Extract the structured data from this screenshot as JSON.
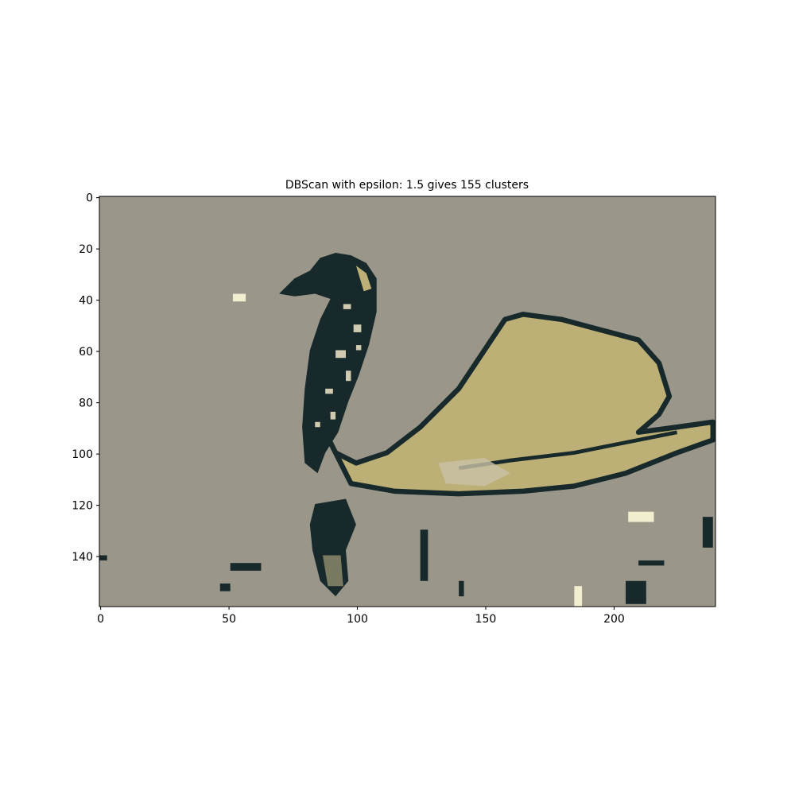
{
  "chart_data": {
    "type": "image",
    "title": "DBScan with epsilon: 1.5 gives 155 clusters",
    "xlim": [
      -0.5,
      239.5
    ],
    "ylim": [
      159.5,
      -0.5
    ],
    "xticks": [
      0,
      50,
      100,
      150,
      200
    ],
    "yticks": [
      0,
      20,
      40,
      60,
      80,
      100,
      120,
      140
    ],
    "background_color": "#9a978a"
  }
}
